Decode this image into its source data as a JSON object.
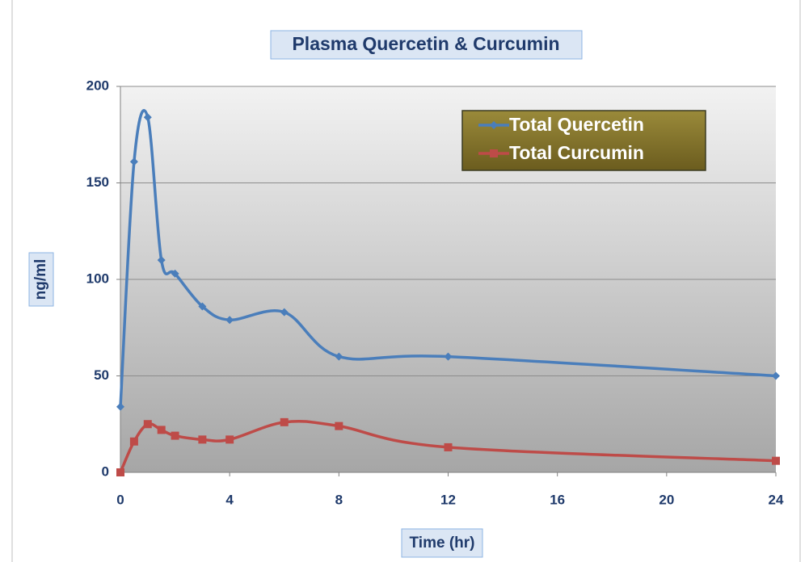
{
  "chart_data": {
    "type": "line",
    "title": "Plasma Quercetin & Curcumin",
    "x_label": "Time (hr)",
    "y_label": "ng/ml",
    "x": [
      0,
      0.5,
      1,
      1.5,
      2,
      3,
      4,
      6,
      8,
      12,
      24
    ],
    "series": [
      {
        "name": "Total Quercetin",
        "color": "#4a7ebb",
        "marker": "diamond",
        "values": [
          34,
          161,
          184,
          110,
          103,
          86,
          79,
          83,
          60,
          60,
          50
        ]
      },
      {
        "name": "Total Curcumin",
        "color": "#be4b48",
        "marker": "square",
        "values": [
          0,
          16,
          25,
          22,
          19,
          17,
          17,
          26,
          24,
          13,
          6
        ]
      }
    ],
    "xlim": [
      0,
      24
    ],
    "xticks": [
      0,
      4,
      8,
      12,
      16,
      20,
      24
    ],
    "ylim": [
      0,
      200
    ],
    "yticks": [
      0,
      50,
      100,
      150,
      200
    ],
    "grid": true,
    "smooth": true,
    "legend_position": "upper right"
  }
}
